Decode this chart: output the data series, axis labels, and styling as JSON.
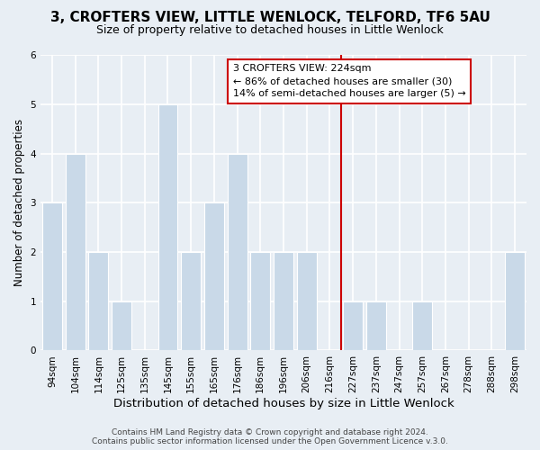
{
  "title": "3, CROFTERS VIEW, LITTLE WENLOCK, TELFORD, TF6 5AU",
  "subtitle": "Size of property relative to detached houses in Little Wenlock",
  "xlabel": "Distribution of detached houses by size in Little Wenlock",
  "ylabel": "Number of detached properties",
  "bar_labels": [
    "94sqm",
    "104sqm",
    "114sqm",
    "125sqm",
    "135sqm",
    "145sqm",
    "155sqm",
    "165sqm",
    "176sqm",
    "186sqm",
    "196sqm",
    "206sqm",
    "216sqm",
    "227sqm",
    "237sqm",
    "247sqm",
    "257sqm",
    "267sqm",
    "278sqm",
    "288sqm",
    "298sqm"
  ],
  "bar_values": [
    3,
    4,
    2,
    1,
    0,
    5,
    2,
    3,
    4,
    2,
    2,
    2,
    0,
    1,
    1,
    0,
    1,
    0,
    0,
    0,
    2
  ],
  "bar_color": "#c9d9e8",
  "bar_edge_color": "#ffffff",
  "property_line_color": "#cc0000",
  "property_line_index": 12.5,
  "ylim": [
    0,
    6
  ],
  "yticks": [
    0,
    1,
    2,
    3,
    4,
    5,
    6
  ],
  "annotation_title": "3 CROFTERS VIEW: 224sqm",
  "annotation_line1": "← 86% of detached houses are smaller (30)",
  "annotation_line2": "14% of semi-detached houses are larger (5) →",
  "annotation_box_color": "#ffffff",
  "annotation_border_color": "#cc0000",
  "footer_line1": "Contains HM Land Registry data © Crown copyright and database right 2024.",
  "footer_line2": "Contains public sector information licensed under the Open Government Licence v.3.0.",
  "background_color": "#e8eef4",
  "grid_color": "#ffffff",
  "title_fontsize": 11,
  "subtitle_fontsize": 9,
  "xlabel_fontsize": 9.5,
  "ylabel_fontsize": 8.5,
  "tick_fontsize": 7.5,
  "footer_fontsize": 6.5
}
